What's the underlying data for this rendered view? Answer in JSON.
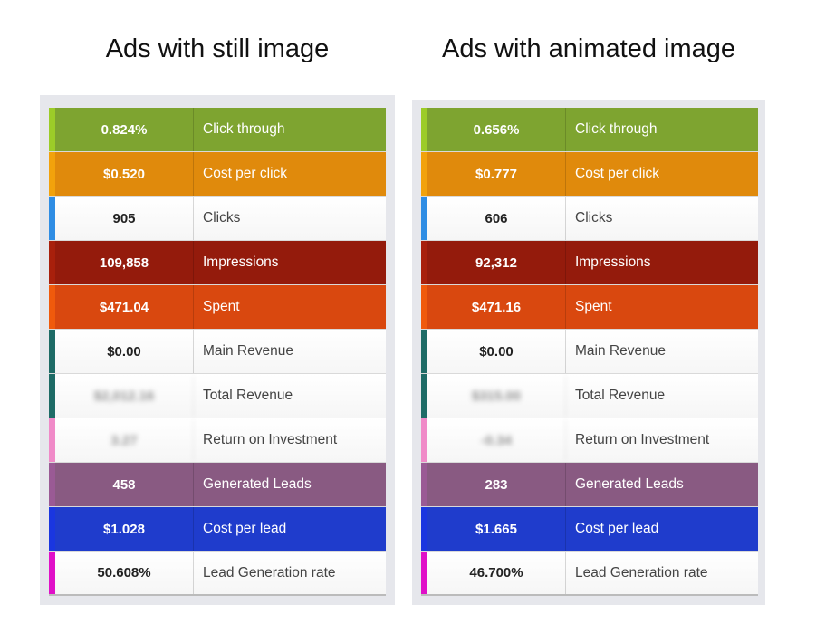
{
  "left": {
    "title": "Ads with still image",
    "rows": [
      {
        "value": "0.824%",
        "label": "Click through",
        "bg": "#7ea430",
        "accent": "#9ccc28",
        "style": "colored"
      },
      {
        "value": "$0.520",
        "label": "Cost per click",
        "bg": "#e08a0c",
        "accent": "#f2a20c",
        "style": "colored"
      },
      {
        "value": "905",
        "label": "Clicks",
        "bg": "#ffffff",
        "accent": "#2f8de4",
        "style": "plain"
      },
      {
        "value": "109,858",
        "label": "Impressions",
        "bg": "#941b0c",
        "accent": "#a8200c",
        "style": "colored"
      },
      {
        "value": "$471.04",
        "label": "Spent",
        "bg": "#d9480f",
        "accent": "#f05a0c",
        "style": "colored"
      },
      {
        "value": "$0.00",
        "label": "Main Revenue",
        "bg": "#ffffff",
        "accent": "#1e6b66",
        "style": "plain"
      },
      {
        "value": "$2,012.16",
        "label": "Total Revenue",
        "bg": "#ffffff",
        "accent": "#1e6b66",
        "style": "plain",
        "blurred": true
      },
      {
        "value": "3.27",
        "label": "Return on Investment",
        "bg": "#ffffff",
        "accent": "#f08ac8",
        "style": "plain",
        "blurred": true
      },
      {
        "value": "458",
        "label": "Generated Leads",
        "bg": "#895a82",
        "accent": "#9a5a95",
        "style": "colored"
      },
      {
        "value": "$1.028",
        "label": "Cost per lead",
        "bg": "#1f3ccc",
        "accent": "#1a36e0",
        "style": "colored"
      },
      {
        "value": "50.608%",
        "label": "Lead Generation rate",
        "bg": "#ffffff",
        "accent": "#e010c8",
        "style": "plain"
      }
    ]
  },
  "right": {
    "title": "Ads with animated image",
    "rows": [
      {
        "value": "0.656%",
        "label": "Click through",
        "bg": "#7ea430",
        "accent": "#9ccc28",
        "style": "colored"
      },
      {
        "value": "$0.777",
        "label": "Cost per click",
        "bg": "#e08a0c",
        "accent": "#f2a20c",
        "style": "colored"
      },
      {
        "value": "606",
        "label": "Clicks",
        "bg": "#ffffff",
        "accent": "#2f8de4",
        "style": "plain"
      },
      {
        "value": "92,312",
        "label": "Impressions",
        "bg": "#941b0c",
        "accent": "#a8200c",
        "style": "colored"
      },
      {
        "value": "$471.16",
        "label": "Spent",
        "bg": "#d9480f",
        "accent": "#f05a0c",
        "style": "colored"
      },
      {
        "value": "$0.00",
        "label": "Main Revenue",
        "bg": "#ffffff",
        "accent": "#1e6b66",
        "style": "plain"
      },
      {
        "value": "$315.00",
        "label": "Total Revenue",
        "bg": "#ffffff",
        "accent": "#1e6b66",
        "style": "plain",
        "blurred": true
      },
      {
        "value": "-0.34",
        "label": "Return on Investment",
        "bg": "#ffffff",
        "accent": "#f08ac8",
        "style": "plain",
        "blurred": true
      },
      {
        "value": "283",
        "label": "Generated Leads",
        "bg": "#895a82",
        "accent": "#9a5a95",
        "style": "colored"
      },
      {
        "value": "$1.665",
        "label": "Cost per lead",
        "bg": "#1f3ccc",
        "accent": "#1a36e0",
        "style": "colored"
      },
      {
        "value": "46.700%",
        "label": "Lead Generation rate",
        "bg": "#ffffff",
        "accent": "#e010c8",
        "style": "plain"
      }
    ]
  }
}
